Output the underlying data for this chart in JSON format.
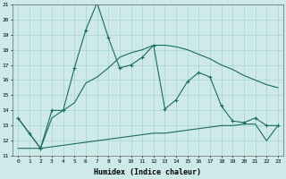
{
  "xlabel": "Humidex (Indice chaleur)",
  "x": [
    0,
    1,
    2,
    3,
    4,
    5,
    6,
    7,
    8,
    9,
    10,
    11,
    12,
    13,
    14,
    15,
    16,
    17,
    18,
    19,
    20,
    21,
    22,
    23
  ],
  "line1": [
    13.5,
    12.5,
    11.5,
    14.0,
    14.0,
    16.8,
    19.3,
    21.1,
    18.8,
    16.8,
    17.0,
    17.5,
    18.3,
    14.1,
    14.7,
    15.9,
    16.5,
    16.2,
    14.3,
    13.3,
    13.2,
    13.5,
    13.0,
    13.0
  ],
  "line2": [
    13.5,
    12.5,
    11.5,
    13.5,
    14.0,
    14.5,
    15.8,
    16.2,
    16.8,
    17.5,
    17.8,
    18.0,
    18.3,
    18.3,
    18.2,
    18.0,
    17.7,
    17.4,
    17.0,
    16.7,
    16.3,
    16.0,
    15.7,
    15.5
  ],
  "line3": [
    11.5,
    11.5,
    11.5,
    11.6,
    11.7,
    11.8,
    11.9,
    12.0,
    12.1,
    12.2,
    12.3,
    12.4,
    12.5,
    12.5,
    12.6,
    12.7,
    12.8,
    12.9,
    13.0,
    13.0,
    13.1,
    13.1,
    12.0,
    13.0
  ],
  "line_color": "#1a6b5a",
  "bg_color": "#ceeae8",
  "grid_color": "#aad4ce",
  "ylim": [
    11,
    21
  ],
  "yticks": [
    11,
    12,
    13,
    14,
    15,
    16,
    17,
    18,
    19,
    20,
    21
  ],
  "figsize": [
    3.2,
    2.0
  ],
  "dpi": 100
}
